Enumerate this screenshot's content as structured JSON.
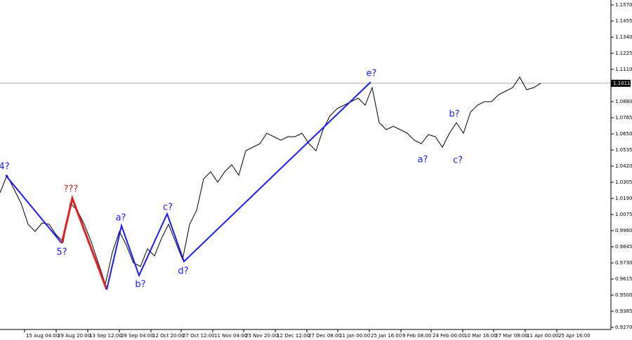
{
  "chart_data": {
    "type": "line",
    "xlim": [
      0,
      87
    ],
    "ylim": [
      0.9255,
      1.1605
    ],
    "xticks": [
      {
        "value": 3.5,
        "label": "15 Aug 04:00"
      },
      {
        "value": 8,
        "label": "29 Aug 20:00"
      },
      {
        "value": 12.5,
        "label": "13 Sep 12:00"
      },
      {
        "value": 17,
        "label": "28 Sep 04:00"
      },
      {
        "value": 21.5,
        "label": "12 Oct 20:00"
      },
      {
        "value": 25.8,
        "label": "27 Oct 12:00"
      },
      {
        "value": 30.3,
        "label": "11 Nov 04:00"
      },
      {
        "value": 34.7,
        "label": "25 Nov 20:00"
      },
      {
        "value": 39.2,
        "label": "12 Dec 12:00"
      },
      {
        "value": 43.7,
        "label": "27 Dec 08:00"
      },
      {
        "value": 48.1,
        "label": "11 Jan 00:00"
      },
      {
        "value": 52.6,
        "label": "25 Jan 16:00"
      },
      {
        "value": 57.1,
        "label": "9 Feb 08:00"
      },
      {
        "value": 61.4,
        "label": "24 Feb 00:00"
      },
      {
        "value": 65.9,
        "label": "10 Mar 16:00"
      },
      {
        "value": 70.3,
        "label": "27 Mar 08:00"
      },
      {
        "value": 74.8,
        "label": "11 Apr 00:00"
      },
      {
        "value": 79.3,
        "label": "25 Apr 16:00"
      }
    ],
    "yticks": [
      {
        "value": 1.157,
        "label": "1.1570"
      },
      1.1455,
      {
        "value": 1.134,
        "label": "1.1340"
      },
      1.1225,
      {
        "value": 1.111,
        "label": "1.1110"
      },
      {
        "value": 1.088,
        "label": "1.0880"
      },
      1.0765,
      {
        "value": 1.065,
        "label": "1.0650"
      },
      1.0535,
      {
        "value": 1.042,
        "label": "1.0420"
      },
      1.0305,
      {
        "value": 1.019,
        "label": "1.0190"
      },
      1.0075,
      {
        "value": 0.996,
        "label": "0.9960"
      },
      0.9845,
      {
        "value": 0.973,
        "label": "0.9730"
      },
      0.9615,
      {
        "value": 0.95,
        "label": "0.9500"
      },
      0.9385,
      {
        "value": 0.927,
        "label": "0.9270"
      }
    ],
    "current_price": 1.1011,
    "series": [
      {
        "color": "#000000",
        "x": [
          0,
          1,
          2,
          3,
          4,
          5,
          6,
          7,
          8,
          9,
          10,
          11,
          12,
          13,
          14,
          15,
          16,
          17,
          18,
          19,
          20,
          21,
          22,
          23,
          24,
          25,
          26,
          27,
          28,
          29,
          30,
          31,
          32,
          33,
          34,
          35,
          36,
          37,
          38,
          39,
          40,
          41,
          42,
          43,
          44,
          45,
          46,
          47,
          48,
          49,
          50,
          51,
          52,
          53,
          54,
          55,
          56,
          57,
          58,
          59,
          60,
          61,
          62,
          63,
          64,
          65,
          66,
          67,
          68,
          69,
          70,
          71,
          72,
          73,
          74,
          75,
          76,
          77
        ],
        "values": [
          1.023,
          1.0355,
          1.0255,
          1.0155,
          1.0005,
          0.9955,
          1.0015,
          1.0005,
          0.993,
          0.988,
          1.0155,
          1.0105,
          1.0005,
          0.988,
          0.973,
          0.958,
          0.9805,
          0.9955,
          0.9855,
          0.973,
          0.9705,
          0.983,
          0.978,
          0.9905,
          1.0005,
          0.988,
          0.9755,
          1.0005,
          1.0105,
          1.033,
          1.038,
          1.0305,
          1.038,
          1.043,
          1.0355,
          1.053,
          1.0555,
          1.058,
          1.0655,
          1.063,
          1.0605,
          1.063,
          1.063,
          1.0655,
          1.058,
          1.053,
          1.068,
          1.078,
          1.083,
          1.0855,
          1.088,
          1.0905,
          1.0855,
          1.098,
          1.073,
          1.068,
          1.0705,
          1.068,
          1.0655,
          1.0605,
          1.058,
          1.0645,
          1.063,
          1.0555,
          1.0655,
          1.073,
          1.0655,
          1.0805,
          1.0855,
          1.088,
          1.088,
          1.093,
          1.0955,
          1.098,
          1.1055,
          1.0965,
          1.098,
          1.1011
        ]
      },
      {
        "color": "#1a1aff",
        "x": [
          0.8,
          8.8
        ],
        "values": [
          1.0355,
          0.987
        ]
      },
      {
        "color": "#e02020",
        "x": [
          8.8,
          10.3,
          15.2
        ],
        "values": [
          0.987,
          1.019,
          0.954
        ]
      },
      {
        "color": "#1a1aff",
        "x": [
          15.2,
          17.3,
          19.8,
          23.8,
          26.2,
          52.8
        ],
        "values": [
          0.954,
          0.9995,
          0.964,
          1.008,
          0.974,
          1.102
        ]
      }
    ],
    "annotations": [
      {
        "text": "4?",
        "x": 0.6,
        "y": 1.0415,
        "color": "#1a1aff"
      },
      {
        "text": "???",
        "x": 10.1,
        "y": 1.0255,
        "color": "#e02020"
      },
      {
        "text": "5?",
        "x": 8.8,
        "y": 0.9805,
        "color": "#1a1aff"
      },
      {
        "text": "a?",
        "x": 17.2,
        "y": 1.005,
        "color": "#1a1aff"
      },
      {
        "text": "b?",
        "x": 20.0,
        "y": 0.9575,
        "color": "#1a1aff"
      },
      {
        "text": "c?",
        "x": 23.9,
        "y": 1.0125,
        "color": "#1a1aff"
      },
      {
        "text": "d?",
        "x": 26.1,
        "y": 0.967,
        "color": "#1a1aff"
      },
      {
        "text": "e?",
        "x": 52.9,
        "y": 1.108,
        "color": "#1a1aff"
      },
      {
        "text": "a?",
        "x": 60.2,
        "y": 1.0465,
        "color": "#1a1aff"
      },
      {
        "text": "b?",
        "x": 64.7,
        "y": 1.079,
        "color": "#1a1aff"
      },
      {
        "text": "c?",
        "x": 65.2,
        "y": 1.046,
        "color": "#1a1aff"
      }
    ]
  }
}
